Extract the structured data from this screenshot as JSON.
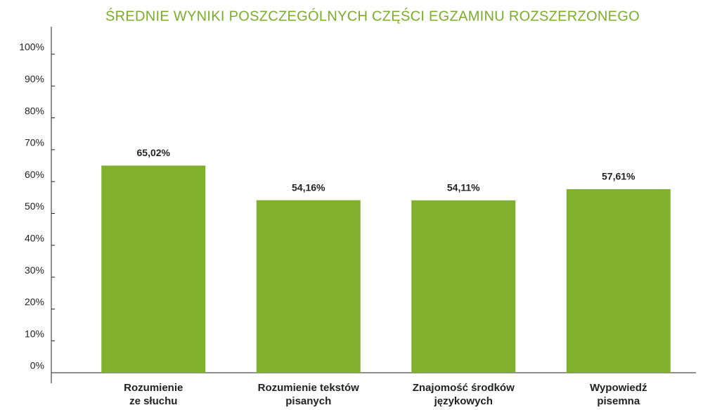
{
  "chart_data": {
    "type": "bar",
    "title": "ŚREDNIE WYNIKI POSZCZEGÓLNYCH CZĘŚCI EGZAMINU ROZSZERZONEGO",
    "categories": [
      "Rozumienie\nze słuchu",
      "Rozumienie tekstów\npisanych",
      "Znajomość środków\njęzykowych",
      "Wypowiedź\npisemna"
    ],
    "values": [
      65.02,
      54.16,
      54.11,
      57.61
    ],
    "value_labels": [
      "65,02%",
      "54,16%",
      "54,11%",
      "57,61%"
    ],
    "color": "#80b02e",
    "ylim": [
      0,
      100
    ],
    "yticks": [
      {
        "value": 0,
        "label": "0%"
      },
      {
        "value": 10,
        "label": "10%"
      },
      {
        "value": 20,
        "label": "20%"
      },
      {
        "value": 30,
        "label": "30%"
      },
      {
        "value": 40,
        "label": "40%"
      },
      {
        "value": 50,
        "label": "50%"
      },
      {
        "value": 60,
        "label": "60%"
      },
      {
        "value": 70,
        "label": "70%"
      },
      {
        "value": 80,
        "label": "80%"
      },
      {
        "value": 90,
        "label": "90%"
      },
      {
        "value": 100,
        "label": "100%"
      }
    ],
    "grid": false
  }
}
